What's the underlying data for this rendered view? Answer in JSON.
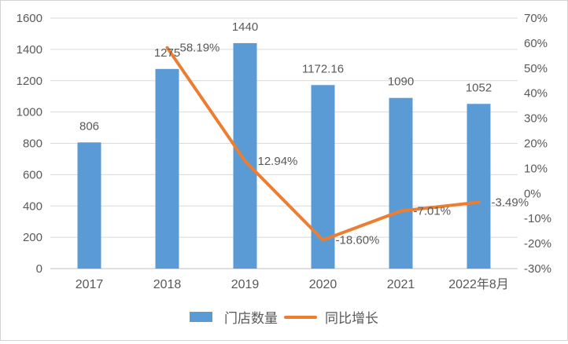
{
  "chart_data": {
    "type": "bar",
    "subtype": "bar+line combo",
    "categories": [
      "2017",
      "2018",
      "2019",
      "2020",
      "2021",
      "2022年8月"
    ],
    "series": [
      {
        "name": "门店数量",
        "type": "bar",
        "axis": "left",
        "color": "#5B9BD5",
        "values": [
          806,
          1275,
          1440,
          1172.16,
          1090,
          1052
        ],
        "labels": [
          "806",
          "1275",
          "1440",
          "1172.16",
          "1090",
          "1052"
        ]
      },
      {
        "name": "同比增长",
        "type": "line",
        "axis": "right",
        "color": "#ED7D31",
        "values": [
          null,
          58.19,
          12.94,
          -18.6,
          -7.01,
          -3.49
        ],
        "labels": [
          null,
          "58.19%",
          "12.94%",
          "-18.60%",
          "-7.01%",
          "-3.49%"
        ]
      }
    ],
    "left_axis": {
      "min": 0,
      "max": 1600,
      "step": 200,
      "ticks": [
        "0",
        "200",
        "400",
        "600",
        "800",
        "1000",
        "1200",
        "1400",
        "1600"
      ]
    },
    "right_axis": {
      "min": -30,
      "max": 70,
      "step": 10,
      "ticks": [
        "-30%",
        "-20%",
        "-10%",
        "0%",
        "10%",
        "20%",
        "30%",
        "40%",
        "50%",
        "60%",
        "70%"
      ]
    },
    "legend": {
      "position": "bottom",
      "items": [
        {
          "label": "门店数量",
          "swatch": "bar",
          "color": "#5B9BD5"
        },
        {
          "label": "同比增长",
          "swatch": "line",
          "color": "#ED7D31"
        }
      ]
    },
    "grid": true,
    "title": "",
    "xlabel": "",
    "ylabel": "",
    "colors": {
      "bar": "#5B9BD5",
      "line": "#ED7D31",
      "grid": "#D9D9D9",
      "axis_line": "#BFBFBF",
      "text": "#595959",
      "background": "#FFFFFF"
    }
  }
}
